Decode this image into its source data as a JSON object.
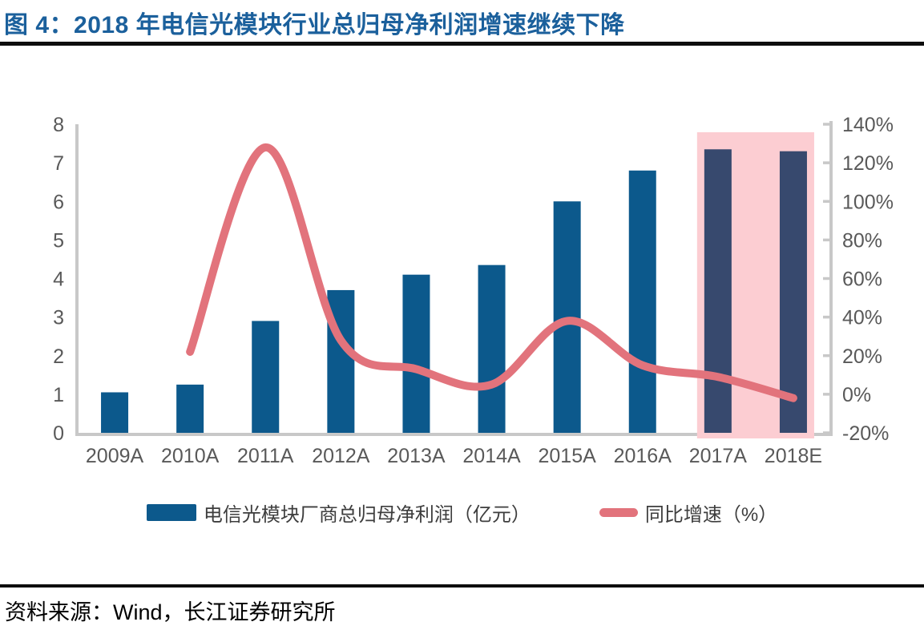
{
  "figure": {
    "title": "图 4：2018 年电信光模块行业总归母净利润增速继续下降",
    "source": "资料来源：Wind，长江证券研究所"
  },
  "legend": {
    "bar_label": "电信光模块厂商总归母净利润（亿元）",
    "line_label": "同比增速（%）"
  },
  "colors": {
    "title_blue": "#1b609c",
    "bar_blue": "#0c598c",
    "bar_navy_highlighted": "#37496e",
    "line_salmon": "#e2737c",
    "band_pink": "#fccdd2",
    "axis_gray": "#c8c8c8",
    "tick_text_gray": "#595959",
    "legend_text": "#3d3d3d",
    "rule_black": "#0d0d0d"
  },
  "chart_data": {
    "type": "combo_bar_line",
    "categories": [
      "2009A",
      "2010A",
      "2011A",
      "2012A",
      "2013A",
      "2014A",
      "2015A",
      "2016A",
      "2017A",
      "2018E"
    ],
    "series": [
      {
        "name": "电信光模块厂商总归母净利润（亿元）",
        "type": "bar",
        "axis": "left",
        "values": [
          1.05,
          1.25,
          2.9,
          3.7,
          4.1,
          4.35,
          6.0,
          6.8,
          7.35,
          7.3
        ]
      },
      {
        "name": "同比增速（%）",
        "type": "line",
        "axis": "right",
        "values": [
          null,
          22,
          128,
          28,
          13,
          5,
          38,
          15,
          9,
          -2
        ]
      }
    ],
    "left_axis": {
      "range": [
        0,
        8
      ],
      "tick_step": 1,
      "tick_labels": [
        "0",
        "1",
        "2",
        "3",
        "4",
        "5",
        "6",
        "7",
        "8"
      ]
    },
    "right_axis": {
      "range": [
        -20,
        140
      ],
      "tick_step": 20,
      "tick_labels": [
        "-20%",
        "0%",
        "20%",
        "40%",
        "60%",
        "80%",
        "100%",
        "120%",
        "140%"
      ]
    },
    "highlight_band": {
      "from_category": "2017A",
      "to_category": "2018E",
      "color": "#fccdd2"
    },
    "grid": false,
    "legend_position": "bottom"
  }
}
